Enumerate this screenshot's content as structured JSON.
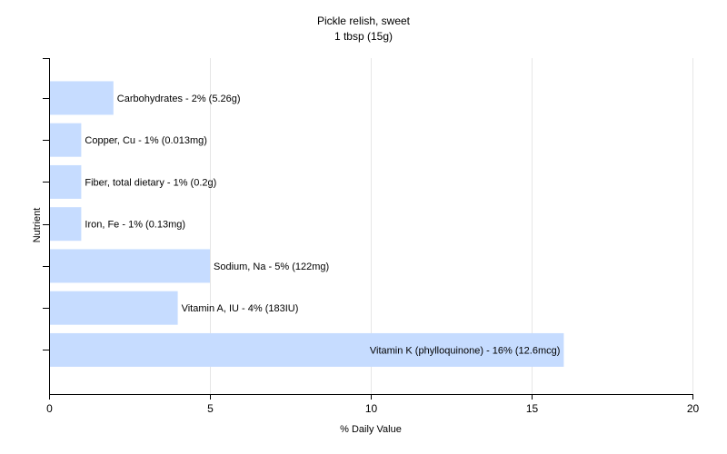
{
  "chart_data": {
    "type": "bar",
    "orientation": "horizontal",
    "title": "Pickle relish, sweet",
    "subtitle": "1 tbsp (15g)",
    "xlabel": "% Daily Value",
    "ylabel": "Nutrient",
    "xlim": [
      0,
      20
    ],
    "xticks": [
      0,
      5,
      10,
      15,
      20
    ],
    "grid": true,
    "bar_color": "#c6dcff",
    "categories": [
      "Carbohydrates",
      "Copper, Cu",
      "Fiber, total dietary",
      "Iron, Fe",
      "Sodium, Na",
      "Vitamin A, IU",
      "Vitamin K (phylloquinone)"
    ],
    "values": [
      2,
      1,
      1,
      1,
      5,
      4,
      16
    ],
    "data_labels": [
      "Carbohydrates - 2% (5.26g)",
      "Copper, Cu - 1% (0.013mg)",
      "Fiber, total dietary - 1% (0.2g)",
      "Iron, Fe - 1% (0.13mg)",
      "Sodium, Na - 5% (122mg)",
      "Vitamin A, IU - 4% (183IU)",
      "Vitamin K (phylloquinone) - 16% (12.6mcg)"
    ]
  }
}
